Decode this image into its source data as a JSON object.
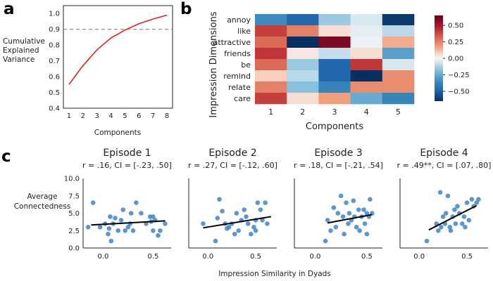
{
  "panels": {
    "a": "a",
    "b": "b",
    "c": "c"
  },
  "chart_data": [
    {
      "id": "panel-a",
      "type": "line",
      "ylabel_lines": [
        "Cumulative",
        "Explained",
        "Variance"
      ],
      "xlabel": "Components",
      "x": [
        1,
        2,
        3,
        4,
        5,
        6,
        7,
        8
      ],
      "y": [
        0.55,
        0.67,
        0.77,
        0.845,
        0.895,
        0.935,
        0.965,
        0.99
      ],
      "xlim": [
        0.6,
        8.4
      ],
      "ylim": [
        0.4,
        1.05
      ],
      "xticks": [
        1,
        2,
        3,
        4,
        5,
        6,
        7,
        8
      ],
      "yticks": [
        "0.4",
        "0.5",
        "0.6",
        "0.7",
        "0.8",
        "0.9",
        "1.0"
      ],
      "threshold": 0.9,
      "line_color": "#e02020",
      "threshold_color": "#888888"
    },
    {
      "id": "panel-b",
      "type": "heatmap",
      "ylabel": "Impression Dimensions",
      "xlabel": "Components",
      "rows": [
        "annoy",
        "like",
        "attractive",
        "friends",
        "be",
        "remind",
        "relate",
        "care"
      ],
      "cols": [
        "1",
        "2",
        "3",
        "4",
        "5"
      ],
      "values": [
        [
          -0.35,
          -0.48,
          -0.15,
          -0.05,
          -0.62
        ],
        [
          0.4,
          0.25,
          0.05,
          -0.03,
          -0.1
        ],
        [
          0.3,
          -0.65,
          0.6,
          -0.02,
          0.15
        ],
        [
          0.42,
          0.03,
          -0.08,
          0.05,
          -0.28
        ],
        [
          0.3,
          -0.15,
          -0.48,
          0.42,
          -0.05
        ],
        [
          0.08,
          -0.1,
          -0.48,
          -0.65,
          0.22
        ],
        [
          0.25,
          -0.18,
          -0.38,
          0.22,
          0.22
        ],
        [
          0.4,
          0.05,
          0.18,
          -0.25,
          -0.38
        ]
      ],
      "colorbar_ticks": [
        "0.50",
        "0.25",
        "0.00",
        "−0.25",
        "−0.50"
      ],
      "colorbar_values": [
        0.5,
        0.25,
        0.0,
        -0.25,
        -0.5
      ],
      "vmin": -0.65,
      "vmax": 0.65
    },
    {
      "id": "panel-c",
      "type": "scatter",
      "ylabel_lines": [
        "Average",
        "Connectedness"
      ],
      "xlabel": "Impression Similarity in Dyads",
      "ylim": [
        0,
        10
      ],
      "yticks": [
        "0.0",
        "2.5",
        "5.0",
        "7.5",
        "10.0"
      ],
      "xticks": [
        "0.0",
        "0.5"
      ],
      "point_color": "#3f84c6",
      "episodes": [
        {
          "title": "Episode 1",
          "stat": "r = .16, CI = [-.23, .50]",
          "xlim": [
            -0.2,
            0.68
          ],
          "fit": [
            [
              -0.12,
              3.3
            ],
            [
              0.62,
              3.9
            ]
          ],
          "points": [
            [
              -0.15,
              3.0
            ],
            [
              -0.1,
              6.5
            ],
            [
              -0.03,
              3.0
            ],
            [
              0.02,
              3.5
            ],
            [
              0.05,
              2.0
            ],
            [
              0.06,
              2.8
            ],
            [
              0.07,
              4.5
            ],
            [
              0.08,
              1.0
            ],
            [
              0.1,
              3.5
            ],
            [
              0.12,
              4.3
            ],
            [
              0.15,
              2.5
            ],
            [
              0.18,
              4.0
            ],
            [
              0.2,
              5.5
            ],
            [
              0.22,
              2.5
            ],
            [
              0.25,
              3.0
            ],
            [
              0.27,
              3.5
            ],
            [
              0.28,
              5.0
            ],
            [
              0.3,
              2.5
            ],
            [
              0.33,
              6.5
            ],
            [
              0.38,
              5.0
            ],
            [
              0.43,
              3.5
            ],
            [
              0.47,
              4.5
            ],
            [
              0.48,
              3.8
            ],
            [
              0.5,
              4.5
            ],
            [
              0.5,
              2.5
            ],
            [
              0.52,
              4.0
            ],
            [
              0.55,
              1.8
            ],
            [
              0.57,
              2.5
            ],
            [
              0.62,
              3.5
            ]
          ]
        },
        {
          "title": "Episode 2",
          "stat": "r = .27, CI = [-.12, .60]",
          "xlim": [
            -0.2,
            0.72
          ],
          "fit": [
            [
              -0.05,
              2.9
            ],
            [
              0.66,
              4.5
            ]
          ],
          "points": [
            [
              -0.05,
              3.5
            ],
            [
              0.08,
              1.0
            ],
            [
              0.1,
              4.3
            ],
            [
              0.12,
              7.0
            ],
            [
              0.15,
              5.3
            ],
            [
              0.18,
              3.5
            ],
            [
              0.2,
              2.8
            ],
            [
              0.22,
              3.0
            ],
            [
              0.25,
              3.5
            ],
            [
              0.28,
              2.0
            ],
            [
              0.3,
              5.0
            ],
            [
              0.32,
              2.5
            ],
            [
              0.35,
              4.0
            ],
            [
              0.38,
              5.5
            ],
            [
              0.4,
              4.5
            ],
            [
              0.42,
              3.5
            ],
            [
              0.45,
              2.0
            ],
            [
              0.48,
              3.0
            ],
            [
              0.5,
              4.0
            ],
            [
              0.52,
              6.5
            ],
            [
              0.55,
              5.5
            ],
            [
              0.57,
              4.0
            ],
            [
              0.6,
              6.5
            ],
            [
              0.62,
              3.5
            ],
            [
              0.5,
              2.5
            ]
          ]
        },
        {
          "title": "Episode 3",
          "stat": "r = .18, CI = [-.21, .54]",
          "xlim": [
            -0.2,
            0.65
          ],
          "fit": [
            [
              0.12,
              3.6
            ],
            [
              0.55,
              4.8
            ]
          ],
          "points": [
            [
              0.1,
              1.0
            ],
            [
              0.12,
              4.0
            ],
            [
              0.15,
              2.5
            ],
            [
              0.18,
              5.8
            ],
            [
              0.2,
              3.0
            ],
            [
              0.22,
              5.0
            ],
            [
              0.25,
              7.5
            ],
            [
              0.27,
              4.5
            ],
            [
              0.28,
              2.0
            ],
            [
              0.3,
              6.5
            ],
            [
              0.32,
              3.5
            ],
            [
              0.33,
              5.0
            ],
            [
              0.35,
              4.0
            ],
            [
              0.37,
              6.8
            ],
            [
              0.38,
              4.5
            ],
            [
              0.4,
              3.0
            ],
            [
              0.42,
              5.5
            ],
            [
              0.43,
              2.5
            ],
            [
              0.45,
              4.5
            ],
            [
              0.47,
              5.5
            ],
            [
              0.48,
              3.5
            ],
            [
              0.5,
              5.0
            ],
            [
              0.5,
              2.0
            ],
            [
              0.52,
              4.5
            ],
            [
              0.53,
              7.0
            ],
            [
              0.55,
              5.0
            ]
          ]
        },
        {
          "title": "Episode 4",
          "stat": "r = .49**, CI = [.07, .80]",
          "xlim": [
            -0.2,
            0.72
          ],
          "fit": [
            [
              0.1,
              2.6
            ],
            [
              0.6,
              6.1
            ]
          ],
          "points": [
            [
              0.08,
              1.0
            ],
            [
              0.18,
              3.5
            ],
            [
              0.2,
              2.5
            ],
            [
              0.22,
              8.0
            ],
            [
              0.23,
              3.0
            ],
            [
              0.25,
              4.5
            ],
            [
              0.27,
              3.5
            ],
            [
              0.28,
              5.0
            ],
            [
              0.3,
              7.5
            ],
            [
              0.32,
              3.0
            ],
            [
              0.33,
              2.5
            ],
            [
              0.35,
              4.5
            ],
            [
              0.37,
              5.5
            ],
            [
              0.38,
              3.5
            ],
            [
              0.4,
              6.0
            ],
            [
              0.42,
              5.0
            ],
            [
              0.45,
              3.5
            ],
            [
              0.47,
              4.5
            ],
            [
              0.48,
              3.0
            ],
            [
              0.5,
              6.5
            ],
            [
              0.52,
              4.0
            ],
            [
              0.55,
              7.0
            ],
            [
              0.57,
              6.0
            ],
            [
              0.6,
              6.5
            ],
            [
              0.62,
              7.0
            ]
          ]
        }
      ]
    }
  ]
}
